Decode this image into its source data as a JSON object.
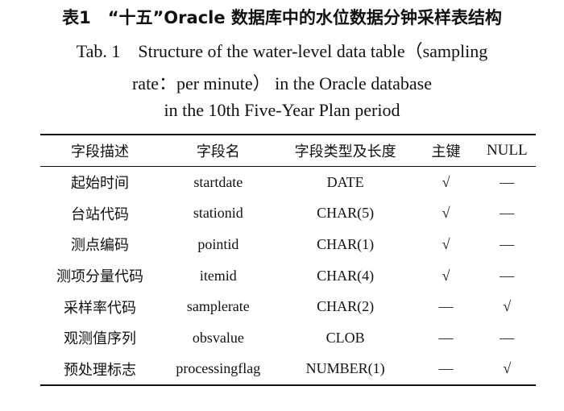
{
  "caption": {
    "zh": "表1　“十五”Oracle 数据库中的水位数据分钟采样表结构",
    "en_line1": "Tab. 1　Structure of the water-level data table（sampling",
    "en_line2": "rate：per minute） in the Oracle database",
    "en_line3": "in the 10th Five-Year Plan period"
  },
  "table": {
    "headers": [
      "字段描述",
      "字段名",
      "字段类型及长度",
      "主键",
      "NULL"
    ],
    "rows": [
      [
        "起始时间",
        "startdate",
        "DATE",
        "√",
        "—"
      ],
      [
        "台站代码",
        "stationid",
        "CHAR(5)",
        "√",
        "—"
      ],
      [
        "测点编码",
        "pointid",
        "CHAR(1)",
        "√",
        "—"
      ],
      [
        "测项分量代码",
        "itemid",
        "CHAR(4)",
        "√",
        "—"
      ],
      [
        "采样率代码",
        "samplerate",
        "CHAR(2)",
        "—",
        "√"
      ],
      [
        "观测值序列",
        "obsvalue",
        "CLOB",
        "—",
        "—"
      ],
      [
        "预处理标志",
        "processingflag",
        "NUMBER(1)",
        "—",
        "√"
      ]
    ]
  }
}
